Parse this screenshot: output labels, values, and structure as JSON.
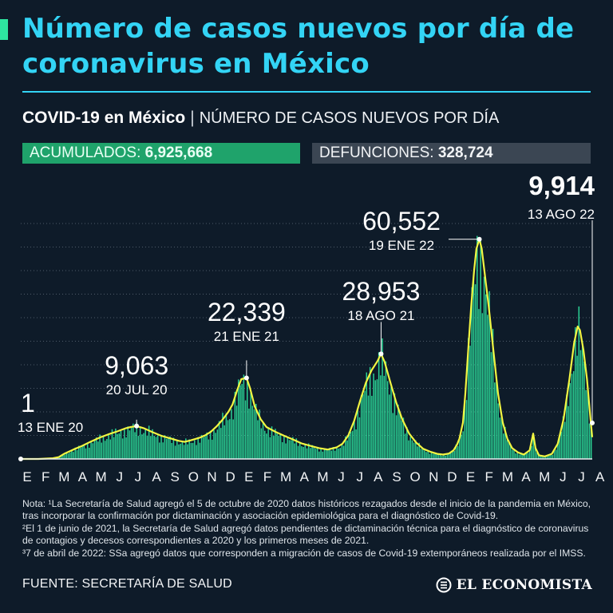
{
  "header": {
    "title": "Número de casos nuevos por día de coronavirus en México",
    "subtitle_bold": "COVID-19 en México",
    "subtitle_sep": "|",
    "subtitle_light": "NÚMERO DE CASOS NUEVOS POR DÍA"
  },
  "stats": {
    "acumulados_label": "ACUMULADOS:",
    "acumulados_value": "6,925,668",
    "defunciones_label": "DEFUNCIONES:",
    "defunciones_value": "328,724"
  },
  "colors": {
    "background": "#0e1b29",
    "title": "#33d4f5",
    "bars": "#2ee6a0",
    "trend_line": "#f2f542",
    "acumulados_fill": "#1fa36b",
    "defunciones_fill": "#3b4653"
  },
  "chart_data": {
    "type": "bar",
    "x_axis": [
      "E",
      "F",
      "M",
      "A",
      "M",
      "J",
      "J",
      "A",
      "S",
      "O",
      "N",
      "D",
      "E",
      "F",
      "M",
      "A",
      "M",
      "J",
      "J",
      "A",
      "S",
      "O",
      "N",
      "D",
      "E",
      "F",
      "M",
      "A",
      "M",
      "J",
      "J",
      "A"
    ],
    "grid": true,
    "ylim": [
      0,
      66000
    ],
    "series": [
      {
        "values": [
          [
            0,
            0
          ],
          [
            30,
            0
          ],
          [
            55,
            200
          ],
          [
            65,
            500
          ],
          [
            75,
            1500
          ],
          [
            90,
            2600
          ],
          [
            105,
            3600
          ],
          [
            120,
            4800
          ],
          [
            135,
            5900
          ],
          [
            150,
            6800
          ],
          [
            165,
            7600
          ],
          [
            180,
            8500
          ],
          [
            188,
            8800
          ],
          [
            198,
            9063
          ],
          [
            210,
            8500
          ],
          [
            225,
            7400
          ],
          [
            240,
            6400
          ],
          [
            255,
            5700
          ],
          [
            270,
            5000
          ],
          [
            280,
            4700
          ],
          [
            290,
            5100
          ],
          [
            305,
            5800
          ],
          [
            315,
            6500
          ],
          [
            325,
            7500
          ],
          [
            335,
            9000
          ],
          [
            345,
            10800
          ],
          [
            355,
            13000
          ],
          [
            362,
            15000
          ],
          [
            370,
            19000
          ],
          [
            377,
            22000
          ],
          [
            386,
            22339
          ],
          [
            392,
            19500
          ],
          [
            400,
            14500
          ],
          [
            410,
            11000
          ],
          [
            420,
            8800
          ],
          [
            435,
            7500
          ],
          [
            450,
            6400
          ],
          [
            465,
            5400
          ],
          [
            480,
            4300
          ],
          [
            495,
            3600
          ],
          [
            510,
            3000
          ],
          [
            525,
            2600
          ],
          [
            540,
            3200
          ],
          [
            550,
            4200
          ],
          [
            560,
            6500
          ],
          [
            570,
            10500
          ],
          [
            580,
            16000
          ],
          [
            590,
            21000
          ],
          [
            600,
            24500
          ],
          [
            610,
            27000
          ],
          [
            616,
            28953
          ],
          [
            622,
            26800
          ],
          [
            632,
            21000
          ],
          [
            642,
            15500
          ],
          [
            652,
            11000
          ],
          [
            664,
            7000
          ],
          [
            676,
            4500
          ],
          [
            688,
            2800
          ],
          [
            700,
            2000
          ],
          [
            712,
            1400
          ],
          [
            722,
            1200
          ],
          [
            732,
            1500
          ],
          [
            740,
            2400
          ],
          [
            746,
            4000
          ],
          [
            750,
            5600
          ],
          [
            756,
            10000
          ],
          [
            760,
            18000
          ],
          [
            765,
            30000
          ],
          [
            770,
            42000
          ],
          [
            775,
            52000
          ],
          [
            779,
            58000
          ],
          [
            784,
            60552
          ],
          [
            788,
            58000
          ],
          [
            794,
            50000
          ],
          [
            800,
            42000
          ],
          [
            808,
            30000
          ],
          [
            816,
            18000
          ],
          [
            824,
            10000
          ],
          [
            832,
            5500
          ],
          [
            840,
            3000
          ],
          [
            850,
            1800
          ],
          [
            860,
            1200
          ],
          [
            870,
            2400
          ],
          [
            876,
            7000
          ],
          [
            880,
            3000
          ],
          [
            886,
            1000
          ],
          [
            896,
            700
          ],
          [
            908,
            1400
          ],
          [
            918,
            4200
          ],
          [
            928,
            11000
          ],
          [
            938,
            22000
          ],
          [
            946,
            32000
          ],
          [
            952,
            36500
          ],
          [
            956,
            35500
          ],
          [
            962,
            30000
          ],
          [
            968,
            22000
          ],
          [
            974,
            11000
          ],
          [
            977,
            6000
          ]
        ]
      }
    ],
    "annotations": [
      {
        "value": "1",
        "date": "13 ENE 20"
      },
      {
        "value": "9,063",
        "date": "20 JUL 20"
      },
      {
        "value": "22,339",
        "date": "21 ENE 21"
      },
      {
        "value": "28,953",
        "date": "18 AGO 21"
      },
      {
        "value": "60,552",
        "date": "19 ENE 22"
      },
      {
        "value": "9,914",
        "date": "13 AGO 22"
      }
    ]
  },
  "notes": {
    "note1": "Nota: ¹La Secretaría de Salud agregó el 5 de octubre de 2020 datos históricos rezagados desde el inicio de la pandemia en México, tras incorporar la confirmación por dictaminación y asociación epidemiológica para el diagnóstico de Covid-19.",
    "note2": "²El 1 de junio de 2021, la Secretaría de Salud agregó datos pendientes de dictaminación técnica para el diagnóstico de coronavirus de contagios y decesos correspondientes a 2020 y los primeros meses de 2021.",
    "note3": "³7 de abril de 2022: SSa agregó datos que corresponden a migración de casos de Covid-19 extemporáneos realizada por el IMSS."
  },
  "footer": {
    "source": "FUENTE: SECRETARÍA DE SALUD",
    "brand": "EL ECONOMISTA",
    "brand_icon": "el-economista-logo-icon"
  }
}
